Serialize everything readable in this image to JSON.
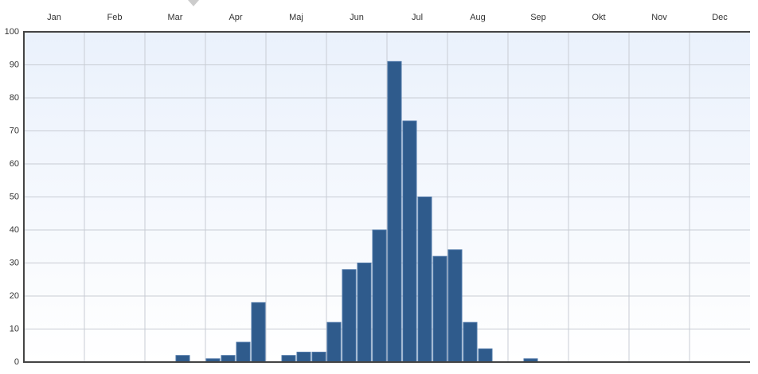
{
  "chart_data": {
    "type": "bar",
    "x_labels": [
      "Jan",
      "Feb",
      "Mar",
      "Apr",
      "Maj",
      "Jun",
      "Jul",
      "Aug",
      "Sep",
      "Okt",
      "Nov",
      "Dec"
    ],
    "values": [
      0,
      0,
      0,
      0,
      0,
      0,
      0,
      0,
      0,
      0,
      2,
      0,
      1,
      2,
      6,
      18,
      0,
      2,
      3,
      3,
      12,
      28,
      30,
      40,
      91,
      73,
      50,
      32,
      34,
      12,
      4,
      0,
      0,
      1,
      0,
      0,
      0,
      0,
      0,
      0,
      0,
      0,
      0,
      0,
      0,
      0,
      0,
      0
    ],
    "color": "#2f5b8c",
    "ylim": [
      0,
      100
    ],
    "yticks": [
      0,
      10,
      20,
      30,
      40,
      50,
      60,
      70,
      80,
      90,
      100
    ],
    "grid": true
  }
}
